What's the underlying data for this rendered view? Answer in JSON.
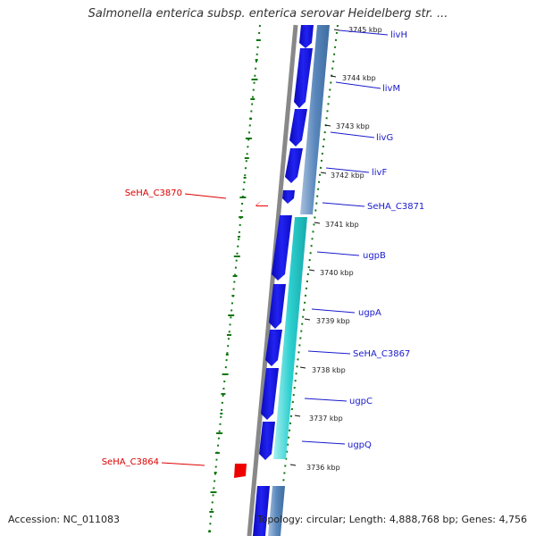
{
  "title": "Salmonella enterica subsp. enterica serovar Heidelberg str. ...",
  "footer": {
    "accession": "Accession: NC_011083",
    "summary": "Topology: circular; Length: 4,888,768 bp; Genes: 4,756"
  },
  "ticks": [
    "3745 kbp",
    "3744 kbp",
    "3743 kbp",
    "3742 kbp",
    "3741 kbp",
    "3740 kbp",
    "3739 kbp",
    "3738 kbp",
    "3737 kbp",
    "3736 kbp"
  ],
  "genes_right": [
    "livH",
    "livM",
    "livG",
    "livF",
    "SeHA_C3871",
    "ugpB",
    "ugpA",
    "SeHA_C3867",
    "ugpC",
    "ugpQ"
  ],
  "genes_left": [
    "SeHA_C3870",
    "SeHA_C3864"
  ],
  "colors": {
    "forward_gene": "#1414e6",
    "cds_blue": "#4f7fb5",
    "cds_cyan": "#22cccc",
    "reverse_gene": "#ee0000",
    "backbone": "#888888",
    "gc_track": "#117711",
    "label": "#1a1acc",
    "label_reverse": "#dd0000"
  }
}
